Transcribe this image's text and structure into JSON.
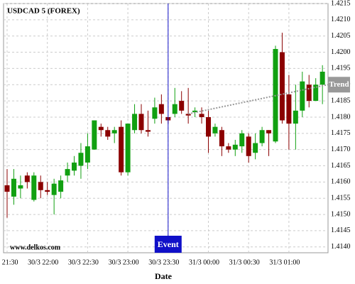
{
  "chart_data": {
    "type": "candlestick",
    "title": "USDCAD 5 (FOREX)",
    "watermark": "www.delkos.com",
    "x_label": "Date",
    "categories": [
      "30/3 21:30",
      null,
      null,
      null,
      null,
      null,
      "30/3 22:00",
      null,
      null,
      null,
      null,
      null,
      "30/3 22:30",
      null,
      null,
      null,
      null,
      null,
      "30/3 23:00",
      null,
      null,
      null,
      null,
      null,
      "30/3 23:30",
      null,
      null,
      null,
      null,
      null,
      "31/3 00:00",
      null,
      null,
      null,
      null,
      null,
      "31/3 00:30",
      null,
      null,
      null,
      null,
      null,
      "31/3 01:00",
      null,
      null,
      null,
      null,
      null
    ],
    "open": [
      1.4159,
      1.41555,
      1.4158,
      1.4162,
      1.41545,
      1.416,
      1.41575,
      1.4156,
      1.4157,
      1.4162,
      1.41635,
      1.4165,
      1.4166,
      1.417,
      1.4177,
      1.4176,
      1.4175,
      1.4177,
      1.4163,
      1.4176,
      1.4181,
      1.4176,
      1.41795,
      1.4184,
      1.418,
      1.4181,
      1.4185,
      1.4181,
      1.41815,
      1.4181,
      1.418,
      1.4175,
      1.4176,
      1.4171,
      1.417,
      1.4171,
      1.4174,
      1.4169,
      1.4172,
      1.4176,
      1.41725,
      1.42,
      1.4187,
      1.4178,
      1.4182,
      1.419,
      1.4185,
      1.419
    ],
    "high": [
      1.4164,
      1.4164,
      1.4162,
      1.4163,
      1.4163,
      1.4162,
      1.416,
      1.4161,
      1.4162,
      1.4166,
      1.4168,
      1.4172,
      1.4175,
      1.4179,
      1.4178,
      1.4177,
      1.4177,
      1.4179,
      1.4178,
      1.4184,
      1.4184,
      1.4182,
      1.4186,
      1.4187,
      1.418,
      1.4189,
      1.4188,
      1.4189,
      1.4183,
      1.4183,
      1.4182,
      1.4178,
      1.4177,
      1.4172,
      1.4173,
      1.4176,
      1.4175,
      1.4175,
      1.4177,
      1.4176,
      1.4202,
      1.4206,
      1.4193,
      1.419,
      1.4194,
      1.4193,
      1.4192,
      1.4196
    ],
    "low": [
      1.4149,
      1.4153,
      1.4155,
      1.4158,
      1.4154,
      1.4155,
      1.4156,
      1.415,
      1.4155,
      1.416,
      1.4162,
      1.4161,
      1.4164,
      1.417,
      1.4174,
      1.4173,
      1.4172,
      1.4162,
      1.4162,
      1.4175,
      1.4175,
      1.4174,
      1.4178,
      1.4178,
      1.4178,
      1.418,
      1.4181,
      1.4178,
      1.418,
      1.4178,
      1.4169,
      1.4174,
      1.4168,
      1.4169,
      1.4168,
      1.4169,
      1.4166,
      1.4167,
      1.4171,
      1.4168,
      1.4172,
      1.4178,
      1.417,
      1.417,
      1.418,
      1.4183,
      1.4185,
      1.4184
    ],
    "close": [
      1.4157,
      1.4161,
      1.4159,
      1.416,
      1.4162,
      1.41575,
      1.4157,
      1.41595,
      1.41605,
      1.4164,
      1.4166,
      1.4169,
      1.4171,
      1.4179,
      1.4176,
      1.4174,
      1.4176,
      1.4163,
      1.4178,
      1.4181,
      1.4176,
      1.41755,
      1.4183,
      1.4181,
      1.4179,
      1.4184,
      1.4182,
      1.41805,
      1.4182,
      1.418,
      1.4174,
      1.4177,
      1.4171,
      1.417,
      1.41715,
      1.4175,
      1.4168,
      1.4172,
      1.4176,
      1.4175,
      1.4201,
      1.4179,
      1.4178,
      1.4182,
      1.4191,
      1.4185,
      1.419,
      1.4194
    ],
    "up_color": "#11a011",
    "down_color": "#8b0000",
    "ylim": [
      1.41382,
      1.4215
    ],
    "yticks": [
      {
        "value": 1.414,
        "label": "1.4140"
      },
      1.4145,
      {
        "value": 1.415,
        "label": "1.4150"
      },
      1.4155,
      {
        "value": 1.416,
        "label": "1.4160"
      },
      1.4165,
      {
        "value": 1.417,
        "label": "1.4170"
      },
      1.4175,
      {
        "value": 1.418,
        "label": "1.4180"
      },
      1.4185,
      {
        "value": 1.419,
        "label": "1.4190"
      },
      1.4195,
      {
        "value": 1.42,
        "label": "1.4200"
      },
      1.4205,
      {
        "value": 1.421,
        "label": "1.4210"
      },
      1.4215
    ],
    "grid": true,
    "event": {
      "label": "Event",
      "index": 24,
      "color": "#1010c8"
    },
    "trend": {
      "label": "Trend",
      "start_index": 27,
      "start": 1.4181,
      "end_index": 48,
      "end": 1.419,
      "color": "#999999"
    }
  }
}
